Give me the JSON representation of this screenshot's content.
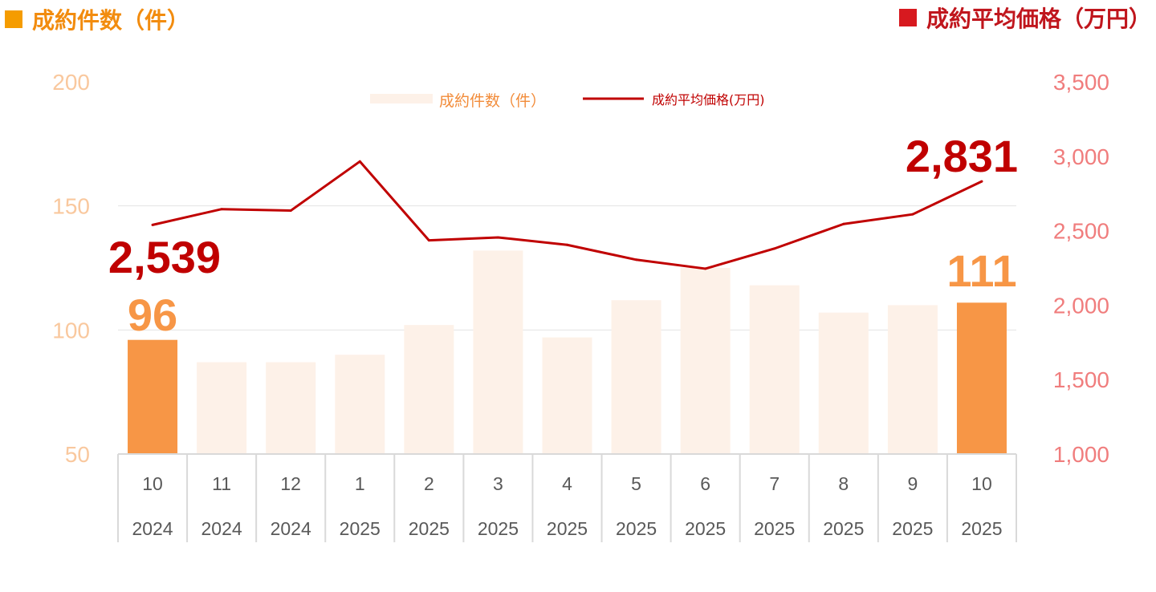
{
  "titles": {
    "left": "成約件数（件）",
    "right": "成約平均価格（万円）",
    "left_color": "#f59c00",
    "right_color": "#d7191f"
  },
  "chart_data": {
    "type": "bar+line",
    "categories": [
      {
        "month": "10",
        "year": "2024"
      },
      {
        "month": "11",
        "year": "2024"
      },
      {
        "month": "12",
        "year": "2024"
      },
      {
        "month": "1",
        "year": "2025"
      },
      {
        "month": "2",
        "year": "2025"
      },
      {
        "month": "3",
        "year": "2025"
      },
      {
        "month": "4",
        "year": "2025"
      },
      {
        "month": "5",
        "year": "2025"
      },
      {
        "month": "6",
        "year": "2025"
      },
      {
        "month": "7",
        "year": "2025"
      },
      {
        "month": "8",
        "year": "2025"
      },
      {
        "month": "9",
        "year": "2025"
      },
      {
        "month": "10",
        "year": "2025"
      }
    ],
    "series": [
      {
        "name": "成約件数（件）",
        "type": "bar",
        "axis": "left",
        "values": [
          96,
          87,
          87,
          90,
          102,
          132,
          97,
          112,
          125,
          118,
          107,
          110,
          111
        ],
        "color": "#fdf1e8",
        "highlight_color": "#f79646",
        "highlight_indices": [
          0,
          12
        ]
      },
      {
        "name": "成約平均価格(万円)",
        "type": "line",
        "axis": "right",
        "values": [
          2539,
          2645,
          2635,
          2965,
          2435,
          2455,
          2405,
          2305,
          2245,
          2380,
          2545,
          2610,
          2831
        ],
        "color": "#c00000"
      }
    ],
    "y_left": {
      "min": 50,
      "max": 200,
      "ticks": [
        "200",
        "150",
        "100",
        "50"
      ],
      "color": "#f9c89e"
    },
    "y_right": {
      "min": 1000,
      "max": 3500,
      "ticks": [
        "3,500",
        "3,000",
        "2,500",
        "2,000",
        "1,500",
        "1,000"
      ],
      "color": "#f07d7d"
    },
    "annotations": {
      "line_first": "2,539",
      "line_last": "2,831",
      "bar_first": "96",
      "bar_last": "111"
    },
    "legend": {
      "placement": "top-center"
    },
    "gridlines": true
  }
}
